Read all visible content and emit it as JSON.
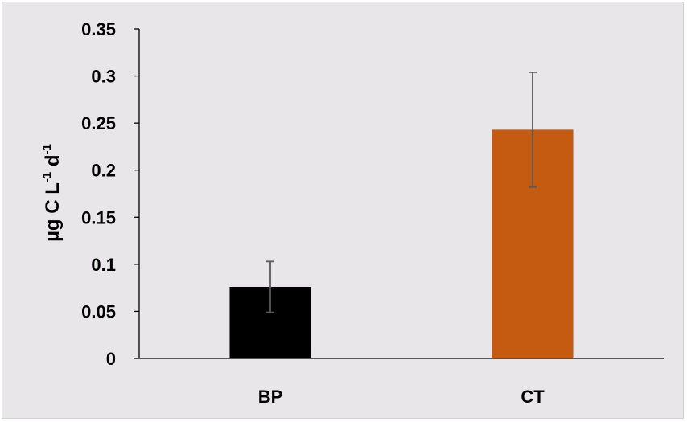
{
  "chart_data": {
    "type": "bar",
    "categories": [
      "BP",
      "CT"
    ],
    "values": [
      0.076,
      0.243
    ],
    "errors": [
      0.027,
      0.061
    ],
    "colors": [
      "#000000",
      "#c55a11"
    ],
    "error_bar_color": "#595959",
    "ylabel": {
      "base": "µg C L",
      "exp1": "-1",
      "mid": " d",
      "exp2": "-1"
    },
    "ylim": [
      0,
      0.35
    ],
    "yticks": [
      0,
      0.05,
      0.1,
      0.15,
      0.2,
      0.25,
      0.3,
      0.35
    ],
    "ytick_labels": [
      "0",
      "0.05",
      "0.1",
      "0.15",
      "0.2",
      "0.25",
      "0.3",
      "0.35"
    ],
    "grid": false,
    "legend": "none",
    "background": "#e8e6e8"
  }
}
